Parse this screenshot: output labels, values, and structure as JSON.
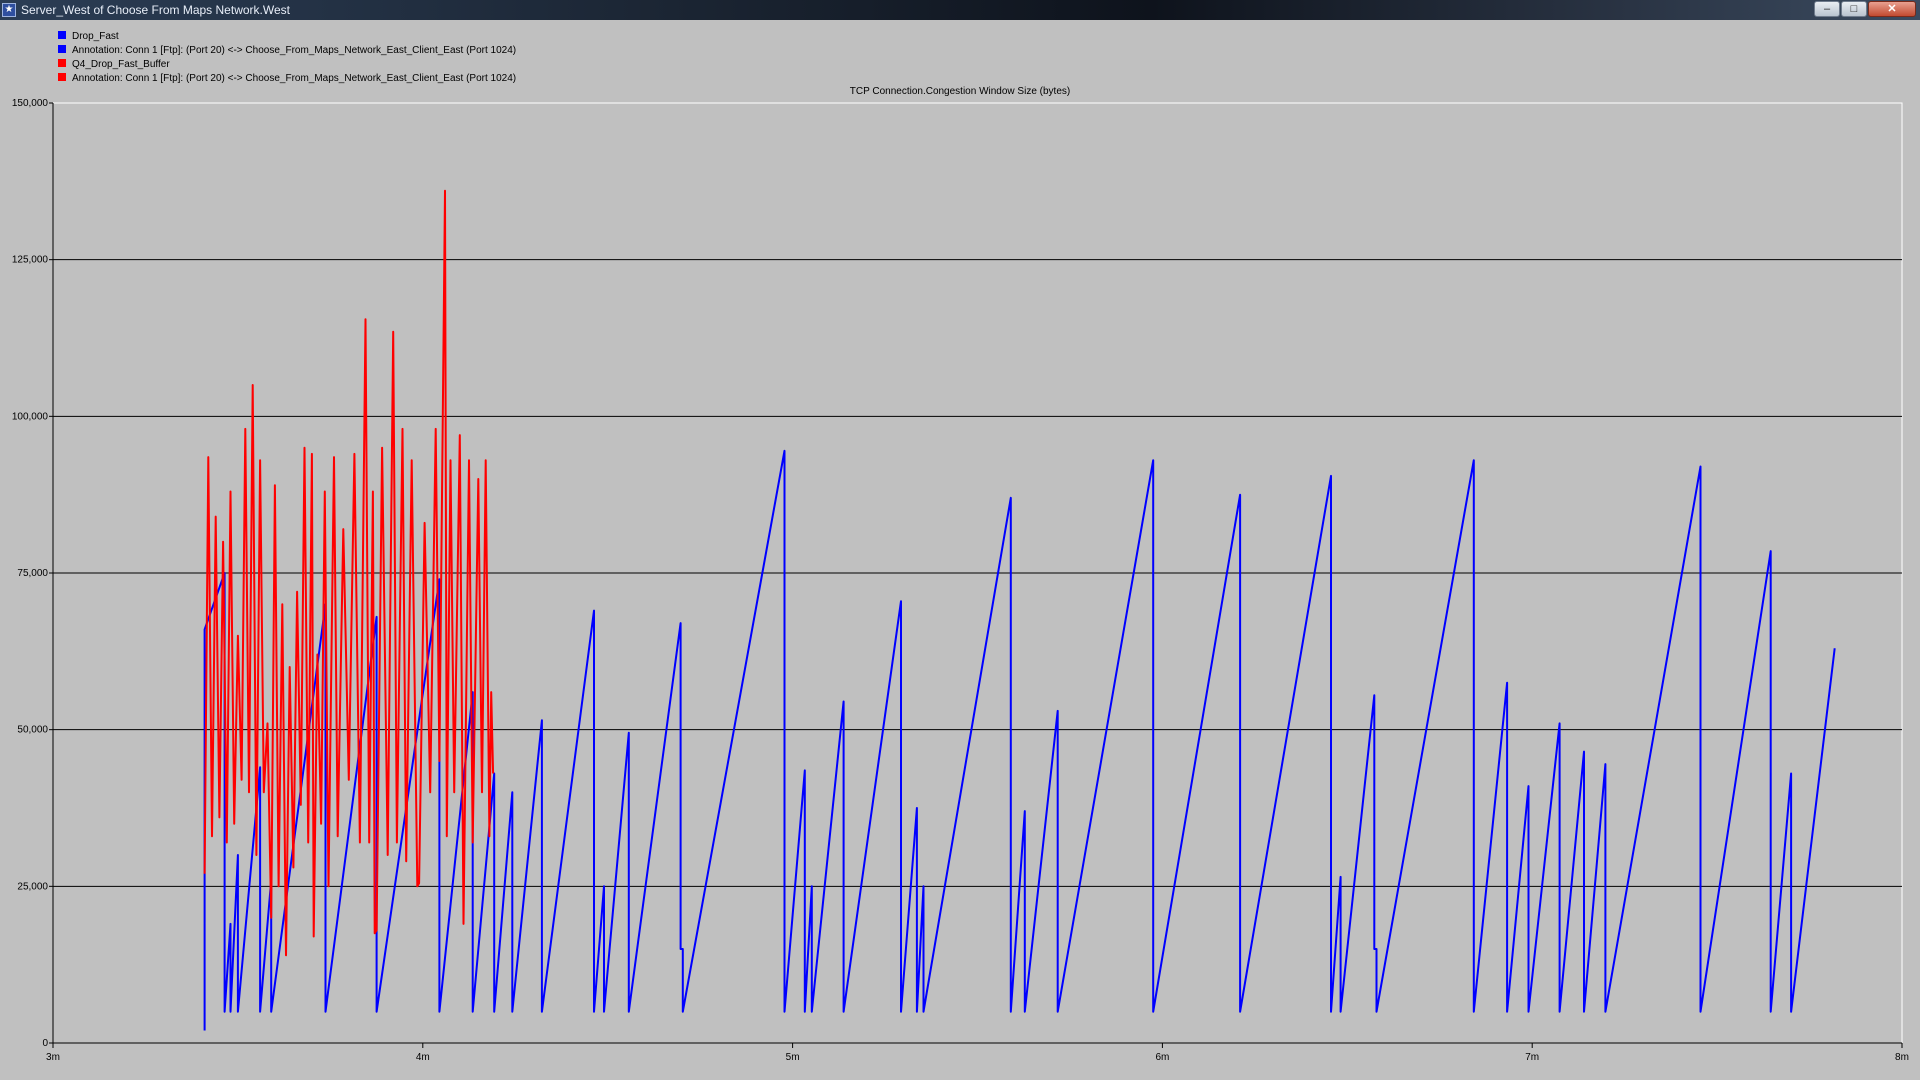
{
  "window": {
    "title": "Server_West of Choose From Maps Network.West",
    "icon": "app-star-icon",
    "buttons": {
      "minimize": "–",
      "maximize": "□",
      "close": "✕"
    }
  },
  "legend": [
    {
      "label": "Drop_Fast",
      "color": "#0000ff"
    },
    {
      "label": "Annotation: Conn 1 [Ftp]: (Port 20) <-> Choose_From_Maps_Network_East_Client_East (Port 1024)",
      "color": "#0000ff"
    },
    {
      "label": "Q4_Drop_Fast_Buffer",
      "color": "#ff0000"
    },
    {
      "label": "Annotation: Conn 1 [Ftp]: (Port 20) <-> Choose_From_Maps_Network_East_Client_East (Port 1024)",
      "color": "#ff0000"
    }
  ],
  "chart_data": {
    "type": "line",
    "title": "TCP Connection.Congestion Window Size (bytes)",
    "xlabel": "",
    "ylabel": "",
    "xlim": [
      3,
      8
    ],
    "ylim": [
      0,
      150000
    ],
    "y_ticks": [
      0,
      25000,
      50000,
      75000,
      100000,
      125000,
      150000
    ],
    "y_tick_labels": [
      "0",
      "25,000",
      "50,000",
      "75,000",
      "100,000",
      "125,000",
      "150,000"
    ],
    "x_ticks": [
      3,
      4,
      5,
      6,
      7,
      8
    ],
    "x_tick_labels": [
      "3m",
      "4m",
      "5m",
      "6m",
      "7m",
      "8m"
    ],
    "grid": "horizontal",
    "background": "#c0c0c0",
    "series": [
      {
        "name": "Drop_Fast",
        "color": "#0000ff",
        "points": [
          [
            3.41,
            2000
          ],
          [
            3.41,
            66000
          ],
          [
            3.464,
            75000
          ],
          [
            3.464,
            5000
          ],
          [
            3.48,
            19000
          ],
          [
            3.48,
            5000
          ],
          [
            3.5,
            30000
          ],
          [
            3.5,
            5000
          ],
          [
            3.56,
            44000
          ],
          [
            3.56,
            5000
          ],
          [
            3.59,
            26000
          ],
          [
            3.59,
            5000
          ],
          [
            3.737,
            70000
          ],
          [
            3.737,
            5000
          ],
          [
            3.875,
            68000
          ],
          [
            3.875,
            5000
          ],
          [
            4.045,
            74000
          ],
          [
            4.045,
            5000
          ],
          [
            4.135,
            56000
          ],
          [
            4.135,
            5000
          ],
          [
            4.193,
            43000
          ],
          [
            4.193,
            5000
          ],
          [
            4.242,
            40000
          ],
          [
            4.242,
            5000
          ],
          [
            4.322,
            51500
          ],
          [
            4.322,
            5000
          ],
          [
            4.463,
            69000
          ],
          [
            4.463,
            5000
          ],
          [
            4.49,
            25000
          ],
          [
            4.49,
            5000
          ],
          [
            4.557,
            49500
          ],
          [
            4.557,
            5000
          ],
          [
            4.697,
            67000
          ],
          [
            4.697,
            15000
          ],
          [
            4.703,
            15000
          ],
          [
            4.703,
            5000
          ],
          [
            4.978,
            94500
          ],
          [
            4.978,
            5000
          ],
          [
            5.033,
            43500
          ],
          [
            5.033,
            5000
          ],
          [
            5.052,
            25000
          ],
          [
            5.052,
            5000
          ],
          [
            5.138,
            54500
          ],
          [
            5.138,
            5000
          ],
          [
            5.293,
            70500
          ],
          [
            5.293,
            5000
          ],
          [
            5.336,
            37500
          ],
          [
            5.336,
            5000
          ],
          [
            5.354,
            25000
          ],
          [
            5.354,
            5000
          ],
          [
            5.59,
            87000
          ],
          [
            5.59,
            5000
          ],
          [
            5.628,
            37000
          ],
          [
            5.628,
            5000
          ],
          [
            5.717,
            53000
          ],
          [
            5.717,
            5000
          ],
          [
            5.975,
            93000
          ],
          [
            5.975,
            5000
          ],
          [
            6.21,
            87500
          ],
          [
            6.21,
            5000
          ],
          [
            6.456,
            90500
          ],
          [
            6.456,
            5000
          ],
          [
            6.482,
            26500
          ],
          [
            6.482,
            5000
          ],
          [
            6.573,
            55500
          ],
          [
            6.573,
            15000
          ],
          [
            6.579,
            15000
          ],
          [
            6.579,
            5000
          ],
          [
            6.842,
            93000
          ],
          [
            6.842,
            5000
          ],
          [
            6.932,
            57500
          ],
          [
            6.932,
            5000
          ],
          [
            6.99,
            41000
          ],
          [
            6.99,
            5000
          ],
          [
            7.074,
            51000
          ],
          [
            7.074,
            5000
          ],
          [
            7.14,
            46500
          ],
          [
            7.14,
            5000
          ],
          [
            7.198,
            44500
          ],
          [
            7.198,
            5000
          ],
          [
            7.455,
            92000
          ],
          [
            7.455,
            5000
          ],
          [
            7.645,
            78500
          ],
          [
            7.645,
            5000
          ],
          [
            7.7,
            43000
          ],
          [
            7.7,
            5000
          ],
          [
            7.818,
            63000
          ]
        ]
      },
      {
        "name": "Q4_Drop_Fast_Buffer",
        "color": "#ff0000",
        "points": [
          [
            3.41,
            27000
          ],
          [
            3.42,
            93500
          ],
          [
            3.43,
            33000
          ],
          [
            3.44,
            84000
          ],
          [
            3.45,
            36000
          ],
          [
            3.46,
            80000
          ],
          [
            3.47,
            32000
          ],
          [
            3.48,
            88000
          ],
          [
            3.49,
            35000
          ],
          [
            3.5,
            65000
          ],
          [
            3.51,
            42000
          ],
          [
            3.52,
            98000
          ],
          [
            3.53,
            40000
          ],
          [
            3.54,
            105000
          ],
          [
            3.55,
            30000
          ],
          [
            3.56,
            93000
          ],
          [
            3.57,
            40000
          ],
          [
            3.58,
            51000
          ],
          [
            3.59,
            20000
          ],
          [
            3.6,
            89000
          ],
          [
            3.61,
            25000
          ],
          [
            3.62,
            70000
          ],
          [
            3.63,
            14000
          ],
          [
            3.64,
            60000
          ],
          [
            3.65,
            28000
          ],
          [
            3.66,
            72000
          ],
          [
            3.67,
            38000
          ],
          [
            3.68,
            95000
          ],
          [
            3.69,
            32000
          ],
          [
            3.7,
            94000
          ],
          [
            3.705,
            17000
          ],
          [
            3.715,
            62000
          ],
          [
            3.725,
            35000
          ],
          [
            3.735,
            88000
          ],
          [
            3.745,
            25000
          ],
          [
            3.76,
            93500
          ],
          [
            3.77,
            33000
          ],
          [
            3.785,
            82000
          ],
          [
            3.8,
            42000
          ],
          [
            3.815,
            94000
          ],
          [
            3.83,
            32000
          ],
          [
            3.845,
            115500
          ],
          [
            3.855,
            32000
          ],
          [
            3.865,
            88000
          ],
          [
            3.87,
            17500
          ],
          [
            3.875,
            18000
          ],
          [
            3.89,
            95000
          ],
          [
            3.905,
            30000
          ],
          [
            3.92,
            113500
          ],
          [
            3.93,
            32000
          ],
          [
            3.945,
            98000
          ],
          [
            3.955,
            29000
          ],
          [
            3.97,
            93000
          ],
          [
            3.985,
            25000
          ],
          [
            3.99,
            25500
          ],
          [
            4.005,
            83000
          ],
          [
            4.02,
            40000
          ],
          [
            4.035,
            98000
          ],
          [
            4.045,
            45000
          ],
          [
            4.06,
            136000
          ],
          [
            4.065,
            33000
          ],
          [
            4.075,
            93000
          ],
          [
            4.085,
            40000
          ],
          [
            4.1,
            97000
          ],
          [
            4.11,
            19000
          ],
          [
            4.125,
            93000
          ],
          [
            4.135,
            32000
          ],
          [
            4.15,
            90000
          ],
          [
            4.16,
            40000
          ],
          [
            4.17,
            93000
          ],
          [
            4.18,
            33000
          ],
          [
            4.185,
            56000
          ],
          [
            4.19,
            43000
          ]
        ]
      }
    ]
  }
}
